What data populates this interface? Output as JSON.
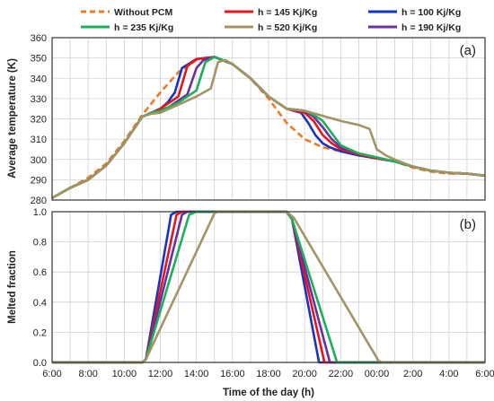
{
  "legend": {
    "items": [
      {
        "label": "Without PCM",
        "color": "#f07a22",
        "dashed": true
      },
      {
        "label": "h = 145 Kj/Kg",
        "color": "#e8141c",
        "dashed": false
      },
      {
        "label": "h = 100 Kj/Kg",
        "color": "#1633c8",
        "dashed": false
      },
      {
        "label": "h = 235 Kj/Kg",
        "color": "#1bb05a",
        "dashed": false
      },
      {
        "label": "h = 520 Kj/Kg",
        "color": "#a39464",
        "dashed": false
      },
      {
        "label": "h = 190 Kj/Kg",
        "color": "#6a30a0",
        "dashed": false
      }
    ]
  },
  "x_axis": {
    "label": "Time of the day (h)",
    "tick_labels": [
      "6:00",
      "8:00",
      "10:00",
      "12:00",
      "14:00",
      "16:00",
      "18:00",
      "20:00",
      "22:00",
      "00:00",
      "2:00",
      "4:00",
      "6:00"
    ],
    "range_hours": [
      6,
      30
    ]
  },
  "chart_data": [
    {
      "type": "line",
      "panel_label": "(a)",
      "title": "",
      "xlabel": "",
      "ylabel": "Average temperature (K)",
      "ylim": [
        280,
        360
      ],
      "yticks": [
        280,
        290,
        300,
        310,
        320,
        330,
        340,
        350,
        360
      ],
      "grid": true,
      "series": [
        {
          "name": "Without PCM",
          "x": [
            6,
            7,
            8,
            9,
            10,
            11,
            12,
            13,
            14,
            15,
            16,
            17,
            18,
            19,
            20,
            21,
            22,
            23,
            24,
            25,
            26,
            27,
            28,
            29,
            30
          ],
          "y": [
            281,
            286,
            291,
            298,
            309,
            322,
            333,
            343,
            349,
            350.5,
            347,
            340,
            330,
            318,
            310,
            306,
            304,
            302,
            301,
            299,
            296,
            294,
            293,
            293,
            292
          ]
        },
        {
          "name": "h = 100 Kj/Kg",
          "x": [
            6,
            7,
            8,
            9,
            10,
            11,
            11.5,
            12,
            12.4,
            12.8,
            13.2,
            14,
            15,
            16,
            17,
            18,
            19,
            19.8,
            20.2,
            20.6,
            21,
            21.4,
            22,
            23,
            24,
            25,
            26,
            27,
            28,
            29,
            30
          ],
          "y": [
            281,
            286,
            290,
            297,
            308,
            321,
            323,
            325,
            328,
            333,
            345,
            349.5,
            350.5,
            347,
            340,
            331,
            325,
            323,
            318,
            312,
            308,
            306,
            304,
            302,
            300.5,
            299,
            296.5,
            294.5,
            293.5,
            293,
            292
          ]
        },
        {
          "name": "h = 145 Kj/Kg",
          "x": [
            6,
            7,
            8,
            9,
            10,
            11,
            11.5,
            12,
            12.5,
            13,
            13.5,
            14,
            15,
            16,
            17,
            18,
            19,
            20,
            20.5,
            21,
            21.5,
            22,
            23,
            24,
            25,
            26,
            27,
            28,
            29,
            30
          ],
          "y": [
            281,
            286,
            290,
            297,
            308,
            321,
            323,
            325,
            328,
            331,
            346,
            349.5,
            350.5,
            347,
            340,
            331,
            325,
            323,
            319,
            312,
            308,
            305,
            302.5,
            300.5,
            299,
            296.5,
            294.5,
            293.5,
            293,
            292
          ]
        },
        {
          "name": "h = 190 Kj/Kg",
          "x": [
            6,
            7,
            8,
            9,
            10,
            11,
            11.5,
            12,
            12.5,
            13,
            13.5,
            14,
            14.4,
            15,
            16,
            17,
            18,
            19,
            20,
            20.5,
            21,
            21.5,
            22,
            23,
            24,
            25,
            26,
            27,
            28,
            29,
            30
          ],
          "y": [
            281,
            286,
            290,
            297,
            308,
            321,
            323,
            324,
            326,
            329,
            332,
            345,
            349,
            350.5,
            347,
            340,
            331,
            325,
            324,
            321,
            316,
            310,
            306,
            303,
            301,
            299,
            296.5,
            294.5,
            293.5,
            293,
            292
          ]
        },
        {
          "name": "h = 235 Kj/Kg",
          "x": [
            6,
            7,
            8,
            9,
            10,
            11,
            11.5,
            12,
            12.5,
            13,
            13.5,
            14,
            14.5,
            15,
            16,
            17,
            18,
            19,
            20,
            20.5,
            21,
            21.5,
            22,
            23,
            24,
            25,
            26,
            27,
            28,
            29,
            30
          ],
          "y": [
            281,
            286,
            290,
            297,
            308,
            321,
            323,
            324,
            326,
            328,
            331,
            334,
            348,
            350.5,
            347,
            340,
            331,
            325,
            324,
            322,
            319,
            313,
            307,
            303,
            301,
            299,
            296.5,
            294.5,
            293.5,
            293,
            292
          ]
        },
        {
          "name": "h = 520 Kj/Kg",
          "x": [
            6,
            7,
            8,
            9,
            10,
            11,
            11.5,
            12,
            13,
            14,
            14.8,
            15.2,
            15.6,
            16,
            17,
            18,
            19,
            20,
            21,
            22,
            23,
            23.6,
            24,
            24.5,
            25,
            26,
            27,
            28,
            29,
            30
          ],
          "y": [
            281,
            286,
            290,
            297,
            308,
            321,
            322.5,
            323,
            327,
            331,
            335,
            348,
            349,
            347,
            340,
            331,
            325,
            324,
            321.5,
            319,
            317,
            315,
            305,
            302,
            300,
            296.5,
            294.5,
            293.5,
            293,
            292
          ]
        }
      ]
    },
    {
      "type": "line",
      "panel_label": "(b)",
      "title": "",
      "xlabel": "",
      "ylabel": "Melted fraction",
      "ylim": [
        0,
        1.0
      ],
      "yticks": [
        "0.0",
        "0.2",
        "0.4",
        "0.6",
        "0.8",
        "1.0"
      ],
      "grid": true,
      "series": [
        {
          "name": "h = 100 Kj/Kg",
          "x": [
            6,
            11,
            11.2,
            12.6,
            12.9,
            19,
            19.3,
            20.8,
            30
          ],
          "y": [
            0,
            0,
            0.02,
            0.98,
            1,
            1,
            0.95,
            0,
            0
          ]
        },
        {
          "name": "h = 145 Kj/Kg",
          "x": [
            6,
            11,
            11.2,
            12.9,
            13.2,
            19,
            19.3,
            21.1,
            30
          ],
          "y": [
            0,
            0,
            0.02,
            0.98,
            1,
            1,
            0.95,
            0,
            0
          ]
        },
        {
          "name": "h = 190 Kj/Kg",
          "x": [
            6,
            11,
            11.2,
            13.2,
            13.5,
            19,
            19.3,
            21.4,
            30
          ],
          "y": [
            0,
            0,
            0.02,
            0.98,
            1,
            1,
            0.95,
            0,
            0
          ]
        },
        {
          "name": "h = 235 Kj/Kg",
          "x": [
            6,
            11,
            11.2,
            13.6,
            14,
            19,
            19.3,
            21.8,
            30
          ],
          "y": [
            0,
            0,
            0.02,
            0.98,
            1,
            1,
            0.95,
            0,
            0
          ]
        },
        {
          "name": "h = 520 Kj/Kg",
          "x": [
            6,
            11,
            11.2,
            15,
            15.2,
            19,
            19.4,
            24.1,
            24.3,
            30
          ],
          "y": [
            0,
            0,
            0.02,
            0.99,
            1,
            1,
            0.96,
            0.01,
            0,
            0
          ]
        }
      ]
    }
  ]
}
